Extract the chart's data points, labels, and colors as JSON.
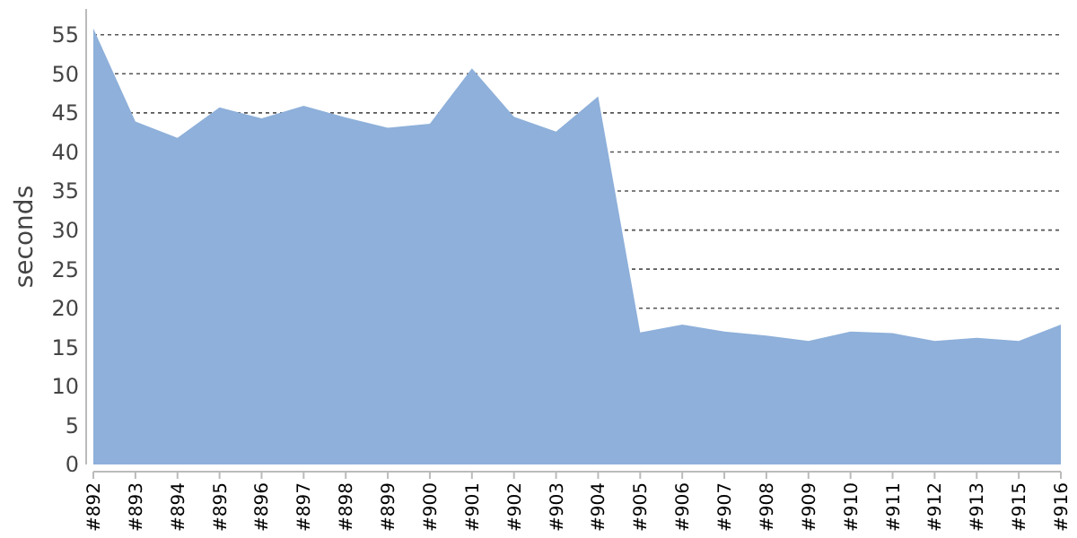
{
  "chart_data": {
    "type": "area",
    "ylabel": "seconds",
    "categories": [
      "#892",
      "#893",
      "#894",
      "#895",
      "#896",
      "#897",
      "#898",
      "#899",
      "#900",
      "#901",
      "#902",
      "#903",
      "#904",
      "#905",
      "#906",
      "#907",
      "#908",
      "#909",
      "#910",
      "#911",
      "#912",
      "#913",
      "#915",
      "#916"
    ],
    "series": [
      {
        "color": "#8eb0da",
        "values": [
          55.8,
          43.9,
          41.8,
          45.7,
          44.3,
          45.9,
          44.4,
          43.1,
          43.6,
          50.7,
          44.5,
          42.6,
          47.1,
          16.9,
          17.9,
          17.0,
          16.5,
          15.8,
          17.0,
          16.8,
          15.8,
          16.2,
          15.8,
          17.9
        ]
      }
    ],
    "ylim": [
      0,
      58.3
    ],
    "yticks": [
      0,
      5,
      10,
      15,
      20,
      25,
      30,
      35,
      40,
      45,
      50,
      55
    ],
    "grid": "y"
  }
}
